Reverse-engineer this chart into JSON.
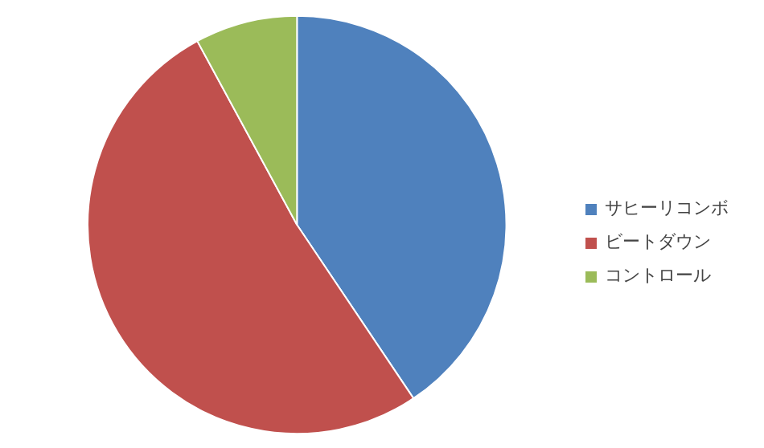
{
  "chart_data": {
    "type": "pie",
    "categories": [
      "サヒーリコンボ",
      "ビートダウン",
      "コントロール"
    ],
    "values": [
      40.6,
      51.5,
      7.9
    ],
    "colors": [
      "#4f81bd",
      "#c0504d",
      "#9bbb59"
    ],
    "legend": "right"
  }
}
